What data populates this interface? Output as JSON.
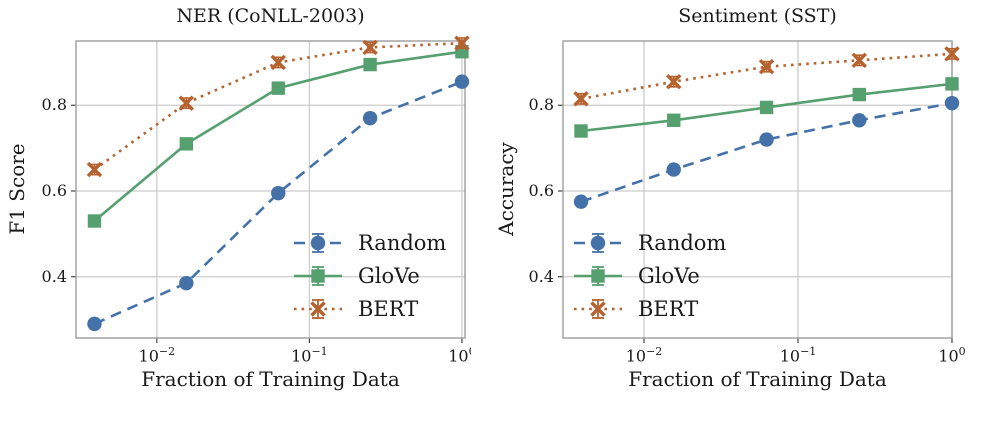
{
  "page": {
    "background": "#ffffff"
  },
  "style": {
    "grid_color": "#cccccc",
    "spine_color": "#9c9c9c",
    "tick_color": "#444444",
    "text_color": "#1a1a1a"
  },
  "chart_data": [
    {
      "type": "line",
      "title": "NER (CoNLL-2003)",
      "xlabel": "Fraction of Training Data",
      "ylabel": "F1 Score",
      "xscale": "log",
      "grid": true,
      "x": [
        0.0039,
        0.0156,
        0.0625,
        0.25,
        1.0
      ],
      "xlim_log": [
        -2.53,
        0.02
      ],
      "ylim": [
        0.257,
        0.95
      ],
      "yticks": [
        0.4,
        0.6,
        0.8
      ],
      "xticks": [
        {
          "label": "10",
          "sup": "−2",
          "log": -2
        },
        {
          "label": "10",
          "sup": "−1",
          "log": -1
        },
        {
          "label": "10",
          "sup": "0",
          "log": 0
        }
      ],
      "legend_position": "lower-right",
      "series": [
        {
          "name": "Random",
          "color": "#4472A8",
          "line": "dashed",
          "marker": "circle",
          "err": 0.012,
          "values": [
            0.29,
            0.385,
            0.595,
            0.77,
            0.855
          ]
        },
        {
          "name": "GloVe",
          "color": "#55A06E",
          "line": "solid",
          "marker": "square",
          "err": 0.01,
          "values": [
            0.53,
            0.71,
            0.84,
            0.895,
            0.925
          ]
        },
        {
          "name": "BERT",
          "color": "#B5622F",
          "line": "dotted",
          "marker": "x",
          "err": 0.012,
          "values": [
            0.65,
            0.805,
            0.9,
            0.935,
            0.945
          ]
        }
      ]
    },
    {
      "type": "line",
      "title": "Sentiment (SST)",
      "xlabel": "Fraction of Training Data",
      "ylabel": "Accuracy",
      "xscale": "log",
      "grid": true,
      "x": [
        0.0039,
        0.0156,
        0.0625,
        0.25,
        1.0
      ],
      "xlim_log": [
        -2.526,
        0.0
      ],
      "ylim": [
        0.257,
        0.95
      ],
      "yticks": [
        0.4,
        0.6,
        0.8
      ],
      "xticks": [
        {
          "label": "10",
          "sup": "−2",
          "log": -2
        },
        {
          "label": "10",
          "sup": "−1",
          "log": -1
        },
        {
          "label": "10",
          "sup": "0",
          "log": 0
        }
      ],
      "legend_position": "lower-left",
      "series": [
        {
          "name": "Random",
          "color": "#4472A8",
          "line": "dashed",
          "marker": "circle",
          "err": 0.012,
          "values": [
            0.575,
            0.65,
            0.72,
            0.765,
            0.805
          ]
        },
        {
          "name": "GloVe",
          "color": "#55A06E",
          "line": "solid",
          "marker": "square",
          "err": 0.01,
          "values": [
            0.74,
            0.765,
            0.795,
            0.825,
            0.85
          ]
        },
        {
          "name": "BERT",
          "color": "#B5622F",
          "line": "dotted",
          "marker": "x",
          "err": 0.012,
          "values": [
            0.815,
            0.855,
            0.89,
            0.905,
            0.92
          ]
        }
      ]
    }
  ]
}
